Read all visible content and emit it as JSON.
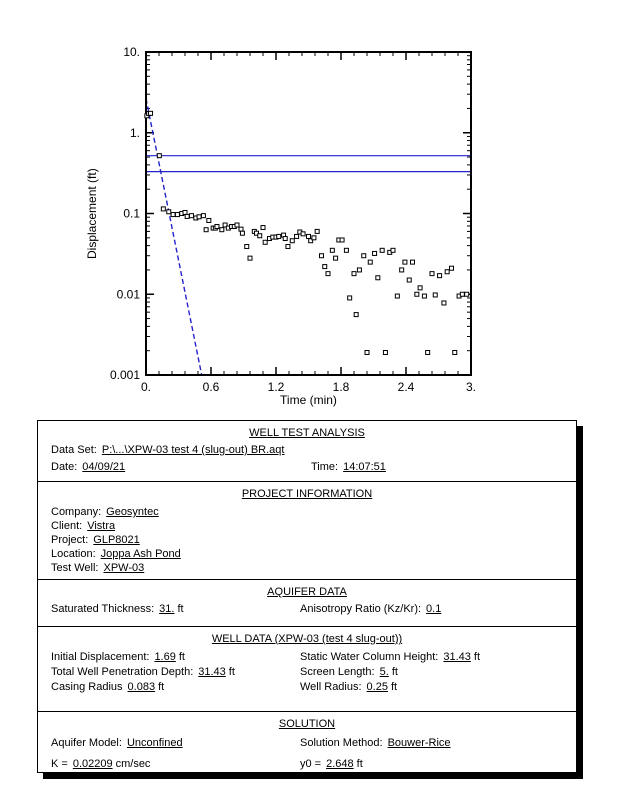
{
  "chart_data": {
    "type": "scatter",
    "title": "",
    "grid": false,
    "legend": false,
    "x_axis": {
      "label": "Time (min)",
      "scale": "linear",
      "range": [
        0,
        3
      ],
      "minor_tick_step": 0.12,
      "major_ticks": [
        {
          "v": 0,
          "label": "0."
        },
        {
          "v": 0.6,
          "label": "0.6"
        },
        {
          "v": 1.2,
          "label": "1.2"
        },
        {
          "v": 1.8,
          "label": "1.8"
        },
        {
          "v": 2.4,
          "label": "2.4"
        },
        {
          "v": 3,
          "label": "3."
        }
      ]
    },
    "y_axis": {
      "label": "Displacement (ft)",
      "scale": "log",
      "range": [
        0.001,
        10
      ],
      "major_ticks": [
        {
          "v": 10,
          "label": "10."
        },
        {
          "v": 1,
          "label": "1."
        },
        {
          "v": 0.1,
          "label": "0.1"
        },
        {
          "v": 0.01,
          "label": "0.01"
        },
        {
          "v": 0.001,
          "label": "0.001"
        }
      ]
    },
    "reference_lines": {
      "color": "#2222cc",
      "values": [
        0.52,
        0.33
      ]
    },
    "series": [
      {
        "name": "observed-displacement",
        "marker": "open-square",
        "color": "#000000",
        "points": [
          [
            0.008,
            1.62
          ],
          [
            0.025,
            1.73
          ],
          [
            0.042,
            1.74
          ],
          [
            0.123,
            0.52
          ],
          [
            0.16,
            0.114
          ],
          [
            0.21,
            0.105
          ],
          [
            0.25,
            0.097
          ],
          [
            0.29,
            0.097
          ],
          [
            0.33,
            0.1
          ],
          [
            0.36,
            0.103
          ],
          [
            0.38,
            0.092
          ],
          [
            0.42,
            0.094
          ],
          [
            0.46,
            0.088
          ],
          [
            0.49,
            0.091
          ],
          [
            0.53,
            0.094
          ],
          [
            0.555,
            0.063
          ],
          [
            0.58,
            0.082
          ],
          [
            0.62,
            0.066
          ],
          [
            0.64,
            0.066
          ],
          [
            0.655,
            0.069
          ],
          [
            0.7,
            0.063
          ],
          [
            0.73,
            0.072
          ],
          [
            0.76,
            0.066
          ],
          [
            0.79,
            0.069
          ],
          [
            0.815,
            0.069
          ],
          [
            0.84,
            0.072
          ],
          [
            0.877,
            0.064
          ],
          [
            0.89,
            0.057
          ],
          [
            0.93,
            0.039
          ],
          [
            0.96,
            0.028
          ],
          [
            1.0,
            0.06
          ],
          [
            1.02,
            0.057
          ],
          [
            1.05,
            0.053
          ],
          [
            1.08,
            0.067
          ],
          [
            1.1,
            0.044
          ],
          [
            1.14,
            0.049
          ],
          [
            1.17,
            0.051
          ],
          [
            1.2,
            0.051
          ],
          [
            1.225,
            0.052
          ],
          [
            1.27,
            0.054
          ],
          [
            1.285,
            0.049
          ],
          [
            1.31,
            0.039
          ],
          [
            1.35,
            0.046
          ],
          [
            1.39,
            0.052
          ],
          [
            1.42,
            0.059
          ],
          [
            1.45,
            0.056
          ],
          [
            1.5,
            0.052
          ],
          [
            1.52,
            0.046
          ],
          [
            1.55,
            0.05
          ],
          [
            1.58,
            0.06
          ],
          [
            1.62,
            0.03
          ],
          [
            1.65,
            0.022
          ],
          [
            1.68,
            0.018
          ],
          [
            1.72,
            0.035
          ],
          [
            1.75,
            0.028
          ],
          [
            1.78,
            0.047
          ],
          [
            1.81,
            0.047
          ],
          [
            1.85,
            0.035
          ],
          [
            1.88,
            0.009
          ],
          [
            1.92,
            0.018
          ],
          [
            1.94,
            0.0056
          ],
          [
            1.97,
            0.02
          ],
          [
            2.01,
            0.03
          ],
          [
            2.04,
            0.0019
          ],
          [
            2.07,
            0.025
          ],
          [
            2.11,
            0.032
          ],
          [
            2.14,
            0.016
          ],
          [
            2.18,
            0.035
          ],
          [
            2.21,
            0.0019
          ],
          [
            2.25,
            0.033
          ],
          [
            2.28,
            0.035
          ],
          [
            2.32,
            0.0095
          ],
          [
            2.36,
            0.02
          ],
          [
            2.39,
            0.025
          ],
          [
            2.43,
            0.015
          ],
          [
            2.46,
            0.025
          ],
          [
            2.5,
            0.01
          ],
          [
            2.53,
            0.012
          ],
          [
            2.57,
            0.0095
          ],
          [
            2.6,
            0.0019
          ],
          [
            2.64,
            0.018
          ],
          [
            2.67,
            0.0098
          ],
          [
            2.71,
            0.017
          ],
          [
            2.75,
            0.0078
          ],
          [
            2.78,
            0.019
          ],
          [
            2.82,
            0.021
          ],
          [
            2.85,
            0.0019
          ],
          [
            2.89,
            0.0095
          ],
          [
            2.92,
            0.01
          ],
          [
            2.96,
            0.01
          ]
        ]
      },
      {
        "name": "bouwer-rice-fit-line",
        "style": "dashed",
        "color": "#2222cc",
        "points": [
          [
            0,
            2.648
          ],
          [
            0.514,
            0.001
          ]
        ]
      }
    ]
  },
  "report": {
    "analysis": {
      "title": "WELL TEST ANALYSIS",
      "data_set_label": "Data Set:",
      "data_set_value": "P:\\...\\XPW-03 test 4 (slug-out) BR.aqt",
      "date_label": "Date:",
      "date_value": "04/09/21",
      "time_label": "Time:",
      "time_value": "14:07:51"
    },
    "project": {
      "title": "PROJECT INFORMATION",
      "rows": [
        {
          "label": "Company:",
          "value": "Geosyntec"
        },
        {
          "label": "Client:",
          "value": "Vistra"
        },
        {
          "label": "Project:",
          "value": "GLP8021"
        },
        {
          "label": "Location:",
          "value": "Joppa Ash Pond"
        },
        {
          "label": "Test Well:",
          "value": "XPW-03"
        }
      ]
    },
    "aquifer": {
      "title": "AQUIFER DATA",
      "left": [
        {
          "label": "Saturated Thickness:",
          "value": "31.",
          "unit": "ft"
        }
      ],
      "right": [
        {
          "label": "Anisotropy Ratio (Kz/Kr):",
          "value": "0.1",
          "unit": ""
        }
      ]
    },
    "well": {
      "title": "WELL DATA (XPW-03 (test 4 slug-out))",
      "left": [
        {
          "label": "Initial Displacement:",
          "value": "1.69",
          "unit": "ft"
        },
        {
          "label": "Total Well Penetration Depth:",
          "value": "31.43",
          "unit": "ft"
        },
        {
          "label": "Casing Radius",
          "value": "0.083",
          "unit": "ft"
        }
      ],
      "right": [
        {
          "label": "Static Water Column Height:",
          "value": "31.43",
          "unit": "ft"
        },
        {
          "label": "Screen Length:",
          "value": "5.",
          "unit": "ft"
        },
        {
          "label": "Well Radius:",
          "value": "0.25",
          "unit": "ft"
        }
      ]
    },
    "solution": {
      "title": "SOLUTION",
      "left": [
        {
          "label": "Aquifer Model:",
          "value": "Unconfined",
          "unit": ""
        },
        {
          "label": "K  =",
          "value": "0.02209",
          "unit": "cm/sec"
        }
      ],
      "right": [
        {
          "label": "Solution Method:",
          "value": "Bouwer-Rice",
          "unit": ""
        },
        {
          "label": "y0 =",
          "value": "2.648",
          "unit": "ft"
        }
      ]
    }
  }
}
